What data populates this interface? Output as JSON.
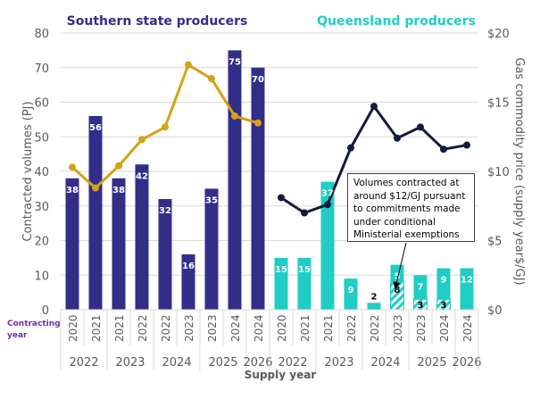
{
  "chart_data": {
    "type": "bar",
    "subtype": "bar-with-line-overlay",
    "groups": [
      {
        "name": "Southern state producers",
        "color": "#332d8a",
        "line_color": "#d4a216"
      },
      {
        "name": "Queensland producers",
        "color": "#1fcdc4",
        "line_color": "#121a3e"
      }
    ],
    "ylabel": "Contracted volumes (PJ)",
    "ylim": [
      0,
      80
    ],
    "yticks": [
      0,
      10,
      20,
      30,
      40,
      50,
      60,
      70,
      80
    ],
    "y2label": "Gas commodity price (supply year$/GJ)",
    "y2lim": [
      0,
      20
    ],
    "y2ticks": [
      "$0",
      "$5",
      "$10",
      "$15",
      "$20"
    ],
    "xlabel": "Supply year",
    "contracting_label_line1": "Contracting",
    "contracting_label_line2": "year",
    "grid": true,
    "categories": [
      {
        "group": "Southern state producers",
        "supply_year": "2022",
        "contracting_year": "2020",
        "volume": 38,
        "price": 10.3
      },
      {
        "group": "Southern state producers",
        "supply_year": "2022",
        "contracting_year": "2021",
        "volume": 56,
        "price": 8.8
      },
      {
        "group": "Southern state producers",
        "supply_year": "2023",
        "contracting_year": "2021",
        "volume": 38,
        "price": 10.4
      },
      {
        "group": "Southern state producers",
        "supply_year": "2023",
        "contracting_year": "2022",
        "volume": 42,
        "price": 12.3
      },
      {
        "group": "Southern state producers",
        "supply_year": "2024",
        "contracting_year": "2022",
        "volume": 32,
        "price": 13.2
      },
      {
        "group": "Southern state producers",
        "supply_year": "2024",
        "contracting_year": "2023",
        "volume": 16,
        "price": 17.7
      },
      {
        "group": "Southern state producers",
        "supply_year": "2025",
        "contracting_year": "2023",
        "volume": 35,
        "price": 16.7
      },
      {
        "group": "Southern state producers",
        "supply_year": "2025",
        "contracting_year": "2024",
        "volume": 75,
        "price": 14.0
      },
      {
        "group": "Southern state producers",
        "supply_year": "2026",
        "contracting_year": "2024",
        "volume": 70,
        "price": 13.5
      },
      {
        "group": "Queensland producers",
        "supply_year": "2022",
        "contracting_year": "2020",
        "volume": 15,
        "price": 8.1
      },
      {
        "group": "Queensland producers",
        "supply_year": "2022",
        "contracting_year": "2021",
        "volume": 15,
        "price": 7.0
      },
      {
        "group": "Queensland producers",
        "supply_year": "2023",
        "contracting_year": "2021",
        "volume": 37,
        "price": 7.6
      },
      {
        "group": "Queensland producers",
        "supply_year": "2023",
        "contracting_year": "2022",
        "volume": 9,
        "price": 11.7
      },
      {
        "group": "Queensland producers",
        "supply_year": "2024",
        "contracting_year": "2022",
        "volume": 2,
        "price": 14.7
      },
      {
        "group": "Queensland producers",
        "supply_year": "2024",
        "contracting_year": "2023",
        "volume": 5,
        "exemption_volume": 8,
        "price": 12.4
      },
      {
        "group": "Queensland producers",
        "supply_year": "2025",
        "contracting_year": "2023",
        "volume": 7,
        "exemption_volume": 3,
        "price": 13.2
      },
      {
        "group": "Queensland producers",
        "supply_year": "2025",
        "contracting_year": "2024",
        "volume": 9,
        "exemption_volume": 3,
        "price": 11.6
      },
      {
        "group": "Queensland producers",
        "supply_year": "2026",
        "contracting_year": "2024",
        "volume": 12,
        "price": 11.9
      }
    ],
    "supply_year_groups": [
      {
        "label": "2022",
        "count": 2
      },
      {
        "label": "2023",
        "count": 2
      },
      {
        "label": "2024",
        "count": 2
      },
      {
        "label": "2025",
        "count": 2
      },
      {
        "label": "2026",
        "count": 1
      },
      {
        "label": "2022",
        "count": 2
      },
      {
        "label": "2023",
        "count": 2
      },
      {
        "label": "2024",
        "count": 2
      },
      {
        "label": "2025",
        "count": 2
      },
      {
        "label": "2026",
        "count": 1
      }
    ],
    "annotation": "Volumes contracted at around $12/GJ pursuant to commitments made under conditional Ministerial exemptions"
  }
}
